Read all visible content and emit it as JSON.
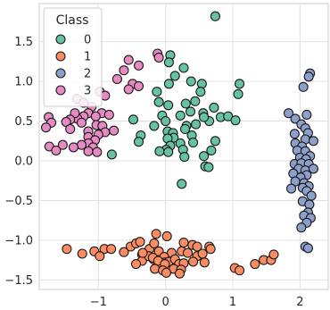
{
  "chart_data": {
    "type": "scatter",
    "title": "",
    "xlabel": "",
    "ylabel": "",
    "xlim": [
      -1.88,
      2.42
    ],
    "ylim": [
      -1.62,
      1.98
    ],
    "xticks": [
      -1,
      0,
      1,
      2
    ],
    "yticks": [
      -1.5,
      -1.0,
      -0.5,
      0.0,
      0.5,
      1.0,
      1.5
    ],
    "grid": true,
    "legend": {
      "title": "Class",
      "position": "top-left"
    },
    "series": [
      {
        "name": "0",
        "color": "#66c2a5",
        "points": [
          [
            0.74,
            1.82
          ],
          [
            0.07,
            1.33
          ],
          [
            0.05,
            1.24
          ],
          [
            0.27,
            1.17
          ],
          [
            0.14,
            1.07
          ],
          [
            0.38,
            1.0
          ],
          [
            0.54,
            0.97
          ],
          [
            0.05,
            0.97
          ],
          [
            -0.13,
            0.87
          ],
          [
            1.1,
            0.97
          ],
          [
            1.08,
            0.84
          ],
          [
            0.52,
            0.87
          ],
          [
            -0.1,
            0.74
          ],
          [
            0.04,
            0.7
          ],
          [
            0.3,
            0.72
          ],
          [
            0.44,
            0.75
          ],
          [
            0.72,
            0.67
          ],
          [
            0.37,
            0.62
          ],
          [
            0.56,
            0.6
          ],
          [
            0.22,
            0.57
          ],
          [
            -0.05,
            0.57
          ],
          [
            -0.48,
            0.52
          ],
          [
            0.65,
            0.5
          ],
          [
            0.57,
            0.55
          ],
          [
            0.0,
            0.5
          ],
          [
            0.45,
            0.46
          ],
          [
            0.31,
            0.44
          ],
          [
            -0.17,
            0.44
          ],
          [
            0.29,
            0.4
          ],
          [
            0.82,
            0.55
          ],
          [
            0.93,
            0.56
          ],
          [
            1.04,
            0.51
          ],
          [
            0.03,
            0.37
          ],
          [
            0.11,
            0.35
          ],
          [
            0.39,
            0.32
          ],
          [
            0.12,
            0.29
          ],
          [
            0.03,
            0.28
          ],
          [
            0.41,
            0.23
          ],
          [
            0.22,
            0.22
          ],
          [
            0.07,
            0.19
          ],
          [
            0.01,
            0.14
          ],
          [
            0.26,
            0.14
          ],
          [
            -0.37,
            0.32
          ],
          [
            -0.4,
            0.24
          ],
          [
            -0.09,
            0.12
          ],
          [
            0.04,
            0.11
          ],
          [
            0.28,
            0.05
          ],
          [
            0.74,
            0.25
          ],
          [
            0.68,
            0.13
          ],
          [
            0.57,
            0.06
          ],
          [
            -0.8,
            0.08
          ],
          [
            0.59,
            -0.07
          ],
          [
            0.64,
            -0.08
          ],
          [
            0.24,
            -0.29
          ]
        ]
      },
      {
        "name": "1",
        "color": "#fc8d62",
        "points": [
          [
            -1.47,
            -1.11
          ],
          [
            -1.06,
            -1.14
          ],
          [
            -0.91,
            -1.11
          ],
          [
            -0.81,
            -1.11
          ],
          [
            -0.52,
            -1.08
          ],
          [
            -0.44,
            -1.04
          ],
          [
            -0.38,
            -1.02
          ],
          [
            -0.14,
            -0.92
          ],
          [
            0.02,
            -0.95
          ],
          [
            -0.24,
            -1.11
          ],
          [
            -0.35,
            -1.18
          ],
          [
            -0.62,
            -1.15
          ],
          [
            -0.98,
            -1.2
          ],
          [
            -1.24,
            -1.17
          ],
          [
            -0.17,
            -1.04
          ],
          [
            0.27,
            -1.03
          ],
          [
            0.4,
            -1.06
          ],
          [
            0.47,
            -1.08
          ],
          [
            0.65,
            -1.08
          ],
          [
            -0.35,
            -1.26
          ],
          [
            -0.18,
            -1.24
          ],
          [
            -0.06,
            -1.3
          ],
          [
            -0.1,
            -1.31
          ],
          [
            -0.44,
            -1.3
          ],
          [
            -0.25,
            -1.2
          ],
          [
            -0.1,
            -1.14
          ],
          [
            0.09,
            -1.16
          ],
          [
            0.24,
            -1.14
          ],
          [
            0.33,
            -1.16
          ],
          [
            0.47,
            -1.2
          ],
          [
            0.55,
            -1.17
          ],
          [
            0.67,
            -1.11
          ],
          [
            -0.02,
            -1.21
          ],
          [
            -0.01,
            -1.28
          ],
          [
            0.05,
            -1.27
          ],
          [
            0.14,
            -1.24
          ],
          [
            -0.19,
            -1.22
          ],
          [
            -0.34,
            -1.16
          ],
          [
            -0.11,
            -1.26
          ],
          [
            -0.01,
            -1.3
          ],
          [
            0.2,
            -1.3
          ],
          [
            0.27,
            -1.29
          ],
          [
            0.41,
            -1.27
          ],
          [
            0.58,
            -1.28
          ],
          [
            -0.16,
            -1.36
          ],
          [
            -0.04,
            -1.38
          ],
          [
            0.12,
            -1.36
          ],
          [
            0.23,
            -1.37
          ],
          [
            0.21,
            -1.42
          ],
          [
            0.01,
            -1.41
          ],
          [
            1.03,
            -1.35
          ],
          [
            1.1,
            -1.38
          ],
          [
            1.33,
            -1.3
          ],
          [
            1.46,
            -1.25
          ],
          [
            1.57,
            -1.25
          ],
          [
            1.61,
            -1.18
          ]
        ]
      },
      {
        "name": "2",
        "color": "#8da0cb",
        "points": [
          [
            2.15,
            1.1
          ],
          [
            2.13,
            1.06
          ],
          [
            2.05,
            0.93
          ],
          [
            1.83,
            0.6
          ],
          [
            1.93,
            0.53
          ],
          [
            2.1,
            0.58
          ],
          [
            2.02,
            0.46
          ],
          [
            2.08,
            0.41
          ],
          [
            2.12,
            0.35
          ],
          [
            1.92,
            0.34
          ],
          [
            2.08,
            0.27
          ],
          [
            2.2,
            0.25
          ],
          [
            1.93,
            0.22
          ],
          [
            2.03,
            0.18
          ],
          [
            1.96,
            0.13
          ],
          [
            2.08,
            0.12
          ],
          [
            2.15,
            0.06
          ],
          [
            2.0,
            0.04
          ],
          [
            2.09,
            0.02
          ],
          [
            1.92,
            -0.04
          ],
          [
            2.02,
            -0.03
          ],
          [
            2.13,
            -0.04
          ],
          [
            1.98,
            -0.1
          ],
          [
            2.08,
            -0.12
          ],
          [
            2.2,
            -0.1
          ],
          [
            1.9,
            -0.16
          ],
          [
            2.1,
            -0.18
          ],
          [
            2.01,
            -0.21
          ],
          [
            1.93,
            -0.26
          ],
          [
            2.06,
            -0.28
          ],
          [
            2.13,
            -0.32
          ],
          [
            1.87,
            -0.35
          ],
          [
            2.04,
            -0.34
          ],
          [
            2.1,
            -0.38
          ],
          [
            2.17,
            -0.44
          ],
          [
            2.04,
            -0.51
          ],
          [
            2.14,
            -0.55
          ],
          [
            2.12,
            -0.65
          ],
          [
            2.06,
            -0.69
          ],
          [
            2.16,
            -0.72
          ],
          [
            2.1,
            -0.78
          ],
          [
            2.02,
            -0.84
          ],
          [
            2.08,
            -1.08
          ],
          [
            2.12,
            -1.1
          ]
        ]
      },
      {
        "name": "3",
        "color": "#e78ac3",
        "points": [
          [
            -0.55,
            1.27
          ],
          [
            -0.4,
            1.2
          ],
          [
            -0.62,
            1.14
          ],
          [
            -0.72,
            1.03
          ],
          [
            -0.49,
            0.97
          ],
          [
            -0.4,
            0.94
          ],
          [
            -0.98,
            0.87
          ],
          [
            -0.55,
            0.9
          ],
          [
            -0.9,
            0.82
          ],
          [
            -1.32,
            0.78
          ],
          [
            -1.22,
            0.73
          ],
          [
            -1.1,
            0.68
          ],
          [
            -1.15,
            0.6
          ],
          [
            -0.95,
            0.6
          ],
          [
            -0.84,
            0.58
          ],
          [
            -1.04,
            0.56
          ],
          [
            -1.22,
            0.56
          ],
          [
            -1.31,
            0.53
          ],
          [
            -1.35,
            0.6
          ],
          [
            -1.42,
            0.52
          ],
          [
            -1.74,
            0.55
          ],
          [
            -1.7,
            0.48
          ],
          [
            -1.48,
            0.49
          ],
          [
            -1.25,
            0.48
          ],
          [
            -1.03,
            0.45
          ],
          [
            -0.94,
            0.44
          ],
          [
            -1.42,
            0.4
          ],
          [
            -1.15,
            0.37
          ],
          [
            -0.9,
            0.36
          ],
          [
            -1.78,
            0.42
          ],
          [
            -1.15,
            0.3
          ],
          [
            -1.0,
            0.33
          ],
          [
            -0.77,
            0.38
          ],
          [
            -1.05,
            0.26
          ],
          [
            -1.15,
            0.22
          ],
          [
            -1.25,
            0.2
          ],
          [
            -1.08,
            0.17
          ],
          [
            -1.37,
            0.17
          ],
          [
            -1.53,
            0.2
          ],
          [
            -1.73,
            0.18
          ],
          [
            -1.63,
            0.13
          ],
          [
            -1.15,
            0.12
          ],
          [
            -1.02,
            0.11
          ],
          [
            -0.12,
            1.35
          ],
          [
            -0.1,
            1.3
          ]
        ]
      }
    ]
  }
}
